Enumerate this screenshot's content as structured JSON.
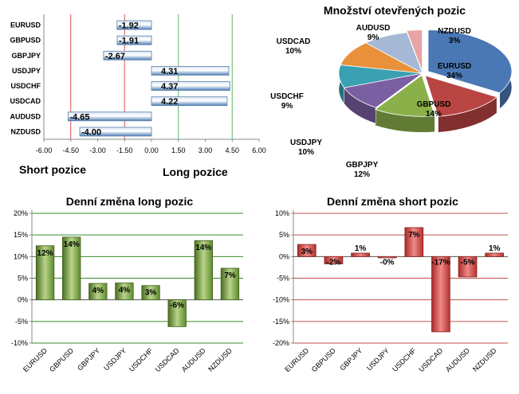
{
  "chart_data": [
    {
      "type": "bar",
      "orientation": "horizontal",
      "categories": [
        "EURUSD",
        "GBPUSD",
        "GBPJPY",
        "USDJPY",
        "USDCHF",
        "USDCAD",
        "AUDUSD",
        "NZDUSD"
      ],
      "values": [
        -1.92,
        -1.91,
        -2.67,
        4.31,
        4.37,
        4.22,
        -4.65,
        -4.0
      ],
      "data_labels": [
        "-1.92",
        "-1.91",
        "-2.67",
        "4.31",
        "4.37",
        "4.22",
        "-4.65",
        "-4.00"
      ],
      "xlim": [
        -6,
        6
      ],
      "x_ticks": [
        -6,
        -4.5,
        -3,
        -1.5,
        0,
        1.5,
        3,
        4.5,
        6
      ],
      "x_tick_labels": [
        "-6.00",
        "-4.50",
        "-3.00",
        "-1.50",
        "0.00",
        "1.50",
        "3.00",
        "4.50",
        "6.00"
      ],
      "reference_lines": [
        {
          "x": -4.5,
          "color": "#d9534f"
        },
        {
          "x": -1.5,
          "color": "#d9534f"
        },
        {
          "x": 1.5,
          "color": "#5cb85c"
        },
        {
          "x": 4.5,
          "color": "#5cb85c"
        }
      ],
      "bar_color": "#4f7fb8",
      "short_label": "Short pozice",
      "long_label": "Long pozice"
    },
    {
      "type": "pie",
      "title": "Množství otevřených pozic",
      "slices": [
        {
          "name": "EURUSD",
          "value": 34,
          "label": "34%",
          "color": "#4a78b4"
        },
        {
          "name": "GBPUSD",
          "value": 14,
          "label": "14%",
          "color": "#b94543"
        },
        {
          "name": "GBPJPY",
          "value": 12,
          "label": "12%",
          "color": "#8bb04a"
        },
        {
          "name": "USDJPY",
          "value": 10,
          "label": "10%",
          "color": "#7b5fa3"
        },
        {
          "name": "USDCHF",
          "value": 9,
          "label": "9%",
          "color": "#3aa0b2"
        },
        {
          "name": "USDCAD",
          "value": 10,
          "label": "10%",
          "color": "#e8913a"
        },
        {
          "name": "AUDUSD",
          "value": 9,
          "label": "9%",
          "color": "#a5b8d6"
        },
        {
          "name": "NZDUSD",
          "value": 3,
          "label": "3%",
          "color": "#e8a3a3"
        }
      ]
    },
    {
      "type": "bar",
      "title": "Denní změna long pozic",
      "categories": [
        "EURUSD",
        "GBPUSD",
        "GBPJPY",
        "USDJPY",
        "USDCHF",
        "USDCAD",
        "AUDUSD",
        "NZDUSD"
      ],
      "values": [
        12.5,
        14.5,
        3.8,
        3.9,
        3.3,
        -6.2,
        13.7,
        7.3
      ],
      "data_labels": [
        "12%",
        "14%",
        "4%",
        "4%",
        "3%",
        "-6%",
        "14%",
        "7%"
      ],
      "ylim": [
        -10,
        20
      ],
      "y_ticks": [
        -10,
        -5,
        0,
        5,
        10,
        15,
        20
      ],
      "y_tick_labels": [
        "-10%",
        "-5%",
        "0%",
        "5%",
        "10%",
        "15%",
        "20%"
      ],
      "gridlines_color": "#3a8a2a",
      "bar_color": "#6e9a36"
    },
    {
      "type": "bar",
      "title": "Denní změna short pozic",
      "categories": [
        "EURUSD",
        "GBPUSD",
        "GBPJPY",
        "USDJPY",
        "USDCHF",
        "USDCAD",
        "AUDUSD",
        "NZDUSD"
      ],
      "values": [
        2.8,
        -1.7,
        0.8,
        -0.3,
        6.7,
        -17.4,
        -4.7,
        0.8
      ],
      "data_labels": [
        "3%",
        "-2%",
        "1%",
        "-0%",
        "7%",
        "-17%",
        "-5%",
        "1%"
      ],
      "ylim": [
        -20,
        10
      ],
      "y_ticks": [
        -20,
        -15,
        -10,
        -5,
        0,
        5,
        10
      ],
      "y_tick_labels": [
        "-20%",
        "-15%",
        "-10%",
        "-5%",
        "0%",
        "5%",
        "10%"
      ],
      "gridlines_color": "#c0504d",
      "bar_color": "#d43a36"
    }
  ]
}
